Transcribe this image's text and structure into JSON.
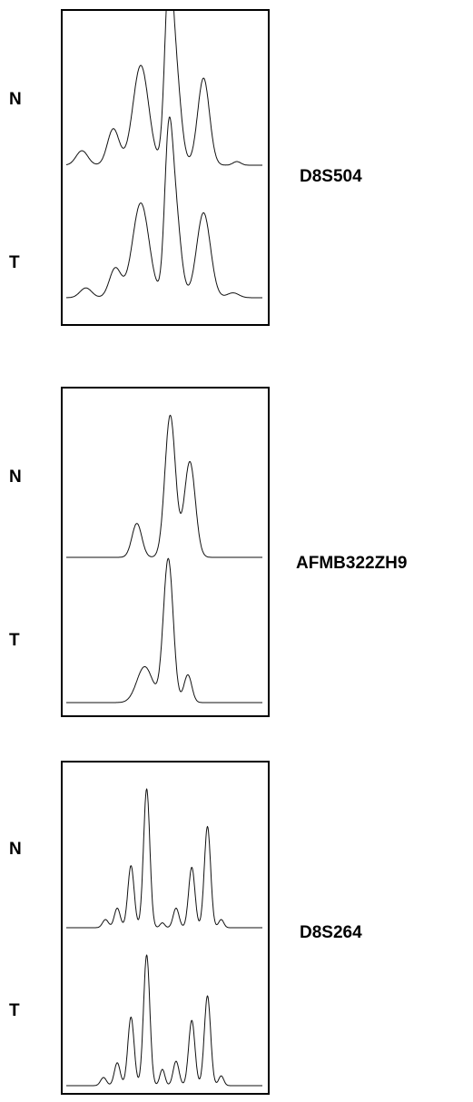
{
  "figure": {
    "panels": [
      {
        "marker": "D8S504",
        "lanes": [
          {
            "label": "N",
            "peaks": [
              {
                "pos": 0.08,
                "height": 0.08,
                "width": 0.03
              },
              {
                "pos": 0.24,
                "height": 0.2,
                "width": 0.03
              },
              {
                "pos": 0.38,
                "height": 0.55,
                "width": 0.04
              },
              {
                "pos": 0.52,
                "height": 0.7,
                "width": 0.02
              },
              {
                "pos": 0.55,
                "height": 0.6,
                "width": 0.03
              },
              {
                "pos": 0.7,
                "height": 0.48,
                "width": 0.03
              },
              {
                "pos": 0.87,
                "height": 0.02,
                "width": 0.02
              }
            ]
          },
          {
            "label": "T",
            "peaks": [
              {
                "pos": 0.1,
                "height": 0.06,
                "width": 0.03
              },
              {
                "pos": 0.25,
                "height": 0.18,
                "width": 0.03
              },
              {
                "pos": 0.38,
                "height": 0.58,
                "width": 0.042
              },
              {
                "pos": 0.52,
                "height": 0.7,
                "width": 0.02
              },
              {
                "pos": 0.55,
                "height": 0.6,
                "width": 0.03
              },
              {
                "pos": 0.7,
                "height": 0.52,
                "width": 0.035
              },
              {
                "pos": 0.85,
                "height": 0.03,
                "width": 0.03
              }
            ]
          }
        ]
      },
      {
        "marker": "AFMB322ZH9",
        "lanes": [
          {
            "label": "N",
            "peaks": [
              {
                "pos": 0.36,
                "height": 0.22,
                "width": 0.025
              },
              {
                "pos": 0.53,
                "height": 0.92,
                "width": 0.027
              },
              {
                "pos": 0.63,
                "height": 0.62,
                "width": 0.028
              }
            ]
          },
          {
            "label": "T",
            "peaks": [
              {
                "pos": 0.4,
                "height": 0.22,
                "width": 0.04
              },
              {
                "pos": 0.52,
                "height": 0.88,
                "width": 0.025
              },
              {
                "pos": 0.62,
                "height": 0.17,
                "width": 0.02
              }
            ]
          }
        ]
      },
      {
        "marker": "D8S264",
        "lanes": [
          {
            "label": "N",
            "peaks": [
              {
                "pos": 0.2,
                "height": 0.05,
                "width": 0.015
              },
              {
                "pos": 0.26,
                "height": 0.12,
                "width": 0.015
              },
              {
                "pos": 0.33,
                "height": 0.38,
                "width": 0.016
              },
              {
                "pos": 0.41,
                "height": 0.85,
                "width": 0.016
              },
              {
                "pos": 0.49,
                "height": 0.03,
                "width": 0.012
              },
              {
                "pos": 0.56,
                "height": 0.12,
                "width": 0.015
              },
              {
                "pos": 0.64,
                "height": 0.37,
                "width": 0.016
              },
              {
                "pos": 0.72,
                "height": 0.62,
                "width": 0.016
              },
              {
                "pos": 0.79,
                "height": 0.05,
                "width": 0.013
              }
            ]
          },
          {
            "label": "T",
            "peaks": [
              {
                "pos": 0.19,
                "height": 0.05,
                "width": 0.015
              },
              {
                "pos": 0.26,
                "height": 0.14,
                "width": 0.015
              },
              {
                "pos": 0.33,
                "height": 0.42,
                "width": 0.016
              },
              {
                "pos": 0.41,
                "height": 0.8,
                "width": 0.016
              },
              {
                "pos": 0.49,
                "height": 0.1,
                "width": 0.013
              },
              {
                "pos": 0.56,
                "height": 0.15,
                "width": 0.015
              },
              {
                "pos": 0.64,
                "height": 0.4,
                "width": 0.016
              },
              {
                "pos": 0.72,
                "height": 0.55,
                "width": 0.016
              },
              {
                "pos": 0.79,
                "height": 0.06,
                "width": 0.013
              }
            ]
          }
        ]
      }
    ],
    "colors": {
      "trace": "#111111",
      "border": "#000000",
      "background": "#ffffff"
    }
  }
}
